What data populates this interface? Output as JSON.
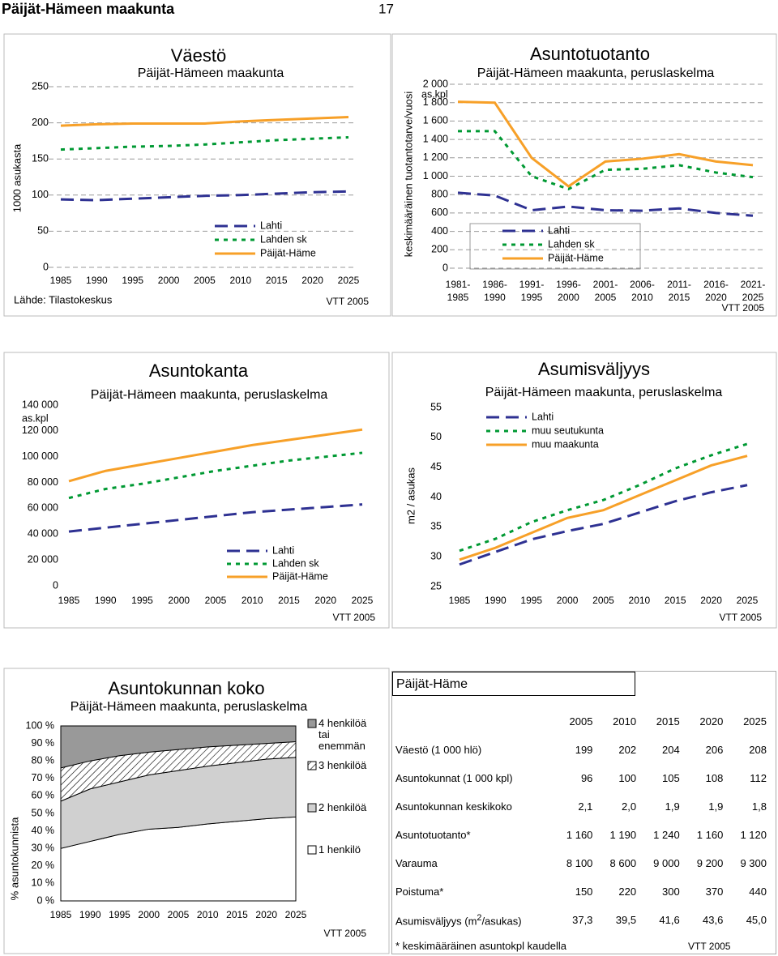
{
  "header": {
    "title": "Päijät-Hämeen maakunta",
    "page": "17"
  },
  "chart_data": [
    {
      "type": "line",
      "title": "Väestö",
      "subtitle": "Päijät-Hämeen maakunta",
      "ylabel": "1000 asukasta",
      "source": "Lähde: Tilastokeskus",
      "credit": "VTT 2005",
      "x": [
        1985,
        1990,
        1995,
        2000,
        2005,
        2010,
        2015,
        2020,
        2025
      ],
      "xlim": [
        1985,
        2025
      ],
      "xticks": [
        1985,
        1990,
        1995,
        2000,
        2005,
        2010,
        2015,
        2020,
        2025
      ],
      "ylim": [
        0,
        250
      ],
      "yticks": [
        0,
        50,
        100,
        150,
        200,
        250
      ],
      "grid": true,
      "series": [
        {
          "name": "Lahti",
          "color": "#2e3192",
          "style": "dashed",
          "values": [
            94,
            93,
            95,
            97,
            99,
            100,
            102,
            104,
            105
          ]
        },
        {
          "name": "Lahden sk",
          "color": "#009933",
          "style": "dotted",
          "values": [
            163,
            165,
            167,
            168,
            170,
            173,
            176,
            178,
            180
          ]
        },
        {
          "name": "Päijät-Häme",
          "color": "#f7a028",
          "style": "solid",
          "values": [
            196,
            198,
            199,
            199,
            199,
            202,
            204,
            206,
            208
          ]
        }
      ]
    },
    {
      "type": "line",
      "title": "Asuntotuotanto",
      "subtitle": "Päijät-Hämeen maakunta, peruslaskelma",
      "ylabel": "keskimääräinen tuotantotarve/vuosi",
      "unit": "as.kpl",
      "credit": "VTT 2005",
      "categories": [
        "1981-1985",
        "1986-1990",
        "1991-1995",
        "1996-2000",
        "2001-2005",
        "2006-2010",
        "2011-2015",
        "2016-2020",
        "2021-2025"
      ],
      "ylim": [
        0,
        2000
      ],
      "yticks": [
        0,
        200,
        400,
        600,
        800,
        {
          "value": 1000,
          "label": "1 000"
        },
        {
          "value": 1200,
          "label": "1 200"
        },
        {
          "value": 1400,
          "label": "1 400"
        },
        {
          "value": 1600,
          "label": "1 600"
        },
        {
          "value": 1800,
          "label": "1 800"
        },
        {
          "value": 2000,
          "label": "2 000"
        }
      ],
      "grid": true,
      "series": [
        {
          "name": "Lahti",
          "color": "#2e3192",
          "style": "dashed",
          "values": [
            820,
            790,
            630,
            670,
            630,
            625,
            650,
            600,
            570
          ]
        },
        {
          "name": "Lahden sk",
          "color": "#009933",
          "style": "dotted",
          "values": [
            1490,
            1490,
            1000,
            860,
            1070,
            1080,
            1120,
            1040,
            990
          ]
        },
        {
          "name": "Päijät-Häme",
          "color": "#f7a028",
          "style": "solid",
          "values": [
            1810,
            1800,
            1200,
            890,
            1160,
            1190,
            1240,
            1160,
            1120
          ]
        }
      ]
    },
    {
      "type": "line",
      "title": "Asuntokanta",
      "subtitle": "Päijät-Hämeen maakunta, peruslaskelma",
      "unit": "as.kpl",
      "credit": "VTT 2005",
      "x": [
        1985,
        1990,
        1995,
        2000,
        2005,
        2010,
        2015,
        2020,
        2025
      ],
      "xlim": [
        1985,
        2025
      ],
      "xticks": [
        1985,
        1990,
        1995,
        2000,
        2005,
        2010,
        2015,
        2020,
        2025
      ],
      "ylim": [
        0,
        140000
      ],
      "yticks": [
        0,
        {
          "value": 20000,
          "label": "20 000"
        },
        {
          "value": 40000,
          "label": "40 000"
        },
        {
          "value": 60000,
          "label": "60 000"
        },
        {
          "value": 80000,
          "label": "80 000"
        },
        {
          "value": 100000,
          "label": "100 000"
        },
        {
          "value": 120000,
          "label": "120 000"
        },
        {
          "value": 140000,
          "label": "140 000"
        }
      ],
      "grid": false,
      "series": [
        {
          "name": "Lahti",
          "color": "#2e3192",
          "style": "dashed",
          "values": [
            42000,
            45000,
            48000,
            51000,
            54000,
            57000,
            59000,
            61000,
            63000
          ]
        },
        {
          "name": "Lahden sk",
          "color": "#009933",
          "style": "dotted",
          "values": [
            68000,
            75000,
            79000,
            84000,
            89000,
            93000,
            97000,
            100000,
            103000
          ]
        },
        {
          "name": "Päijät-Häme",
          "color": "#f7a028",
          "style": "solid",
          "values": [
            81000,
            89000,
            94000,
            99000,
            104000,
            109000,
            113000,
            117000,
            121000
          ]
        }
      ]
    },
    {
      "type": "line",
      "title": "Asumisväljyys",
      "subtitle": "Päijät-Hämeen maakunta, peruslaskelma",
      "ylabel": "m2 / asukas",
      "credit": "VTT 2005",
      "x": [
        1985,
        1990,
        1995,
        2000,
        2005,
        2010,
        2015,
        2020,
        2025
      ],
      "xlim": [
        1985,
        2025
      ],
      "xticks": [
        1985,
        1990,
        1995,
        2000,
        2005,
        2010,
        2015,
        2020,
        2025
      ],
      "ylim": [
        25,
        55
      ],
      "yticks": [
        25,
        30,
        35,
        40,
        45,
        50,
        55
      ],
      "grid": false,
      "series": [
        {
          "name": "Lahti",
          "color": "#2e3192",
          "style": "dashed",
          "values": [
            28.7,
            30.8,
            32.9,
            34.3,
            35.5,
            37.4,
            39.3,
            40.8,
            42
          ]
        },
        {
          "name": "muu seutukunta",
          "color": "#009933",
          "style": "dotted",
          "values": [
            31,
            33,
            35.8,
            37.8,
            39.5,
            42,
            44.8,
            47,
            48.9
          ]
        },
        {
          "name": "muu maakunta",
          "color": "#f7a028",
          "style": "solid",
          "values": [
            29.5,
            31.5,
            34,
            36.5,
            37.8,
            40.3,
            42.8,
            45.3,
            46.9
          ]
        }
      ]
    },
    {
      "type": "area",
      "title": "Asuntokunnan koko",
      "subtitle": "Päijät-Hämeen maakunta, peruslaskelma",
      "ylabel": "% asuntokunnista",
      "credit": "VTT 2005",
      "x": [
        1985,
        1990,
        1995,
        2000,
        2005,
        2010,
        2015,
        2020,
        2025
      ],
      "xlim": [
        1985,
        2025
      ],
      "xticks": [
        1985,
        1990,
        1995,
        2000,
        2005,
        2010,
        2015,
        2020,
        2025
      ],
      "ylim": [
        0,
        100
      ],
      "yticks": [
        {
          "value": 0,
          "label": "0 %"
        },
        {
          "value": 10,
          "label": "10 %"
        },
        {
          "value": 20,
          "label": "20 %"
        },
        {
          "value": 30,
          "label": "30 %"
        },
        {
          "value": 40,
          "label": "40 %"
        },
        {
          "value": 50,
          "label": "50 %"
        },
        {
          "value": 60,
          "label": "60 %"
        },
        {
          "value": 70,
          "label": "70 %"
        },
        {
          "value": 80,
          "label": "80 %"
        },
        {
          "value": 90,
          "label": "90 %"
        },
        {
          "value": 100,
          "label": "100 %"
        }
      ],
      "grid": false,
      "series": [
        {
          "name": "1 henkilö",
          "color": "#ffffff",
          "values": [
            30,
            34,
            38,
            41,
            42,
            44,
            45.5,
            47,
            48
          ]
        },
        {
          "name": "2 henkilöä",
          "color": "#d0d0d0",
          "values": [
            27,
            30,
            30,
            31,
            32.5,
            33,
            33.5,
            34,
            34
          ]
        },
        {
          "name": "3 henkilöä",
          "color": "#ffffff",
          "hatch": true,
          "values": [
            19,
            16,
            15,
            13,
            12,
            11,
            10,
            9,
            9
          ]
        },
        {
          "name": "4 henkilöä tai enemmän",
          "color": "#999999",
          "values": [
            24,
            20,
            17,
            15,
            13.5,
            12,
            11,
            10,
            9
          ]
        }
      ]
    }
  ],
  "table": {
    "title": "Päijät-Häme",
    "columns": [
      "2005",
      "2010",
      "2015",
      "2020",
      "2025"
    ],
    "rows": [
      {
        "label": "Väestö (1 000 hlö)",
        "values": [
          "199",
          "202",
          "204",
          "206",
          "208"
        ]
      },
      {
        "label": "Asuntokunnat (1 000 kpl)",
        "values": [
          "96",
          "100",
          "105",
          "108",
          "112"
        ]
      },
      {
        "label": "Asuntokunnan keskikoko",
        "values": [
          "2,1",
          "2,0",
          "1,9",
          "1,9",
          "1,8"
        ]
      },
      {
        "label": "Asuntotuotanto*",
        "values": [
          "1 160",
          "1 190",
          "1 240",
          "1 160",
          "1 120"
        ]
      },
      {
        "label": "Varauma",
        "values": [
          "8 100",
          "8 600",
          "9 000",
          "9 200",
          "9 300"
        ]
      },
      {
        "label": "Poistuma*",
        "values": [
          "150",
          "220",
          "300",
          "370",
          "440"
        ]
      },
      {
        "label": [
          "Asumisväljyys (m",
          "2",
          "/asukas)"
        ],
        "values": [
          "37,3",
          "39,5",
          "41,6",
          "43,6",
          "45,0"
        ]
      }
    ],
    "footnote": "* keskimääräinen asuntokpl kaudella",
    "credit": "VTT 2005"
  }
}
